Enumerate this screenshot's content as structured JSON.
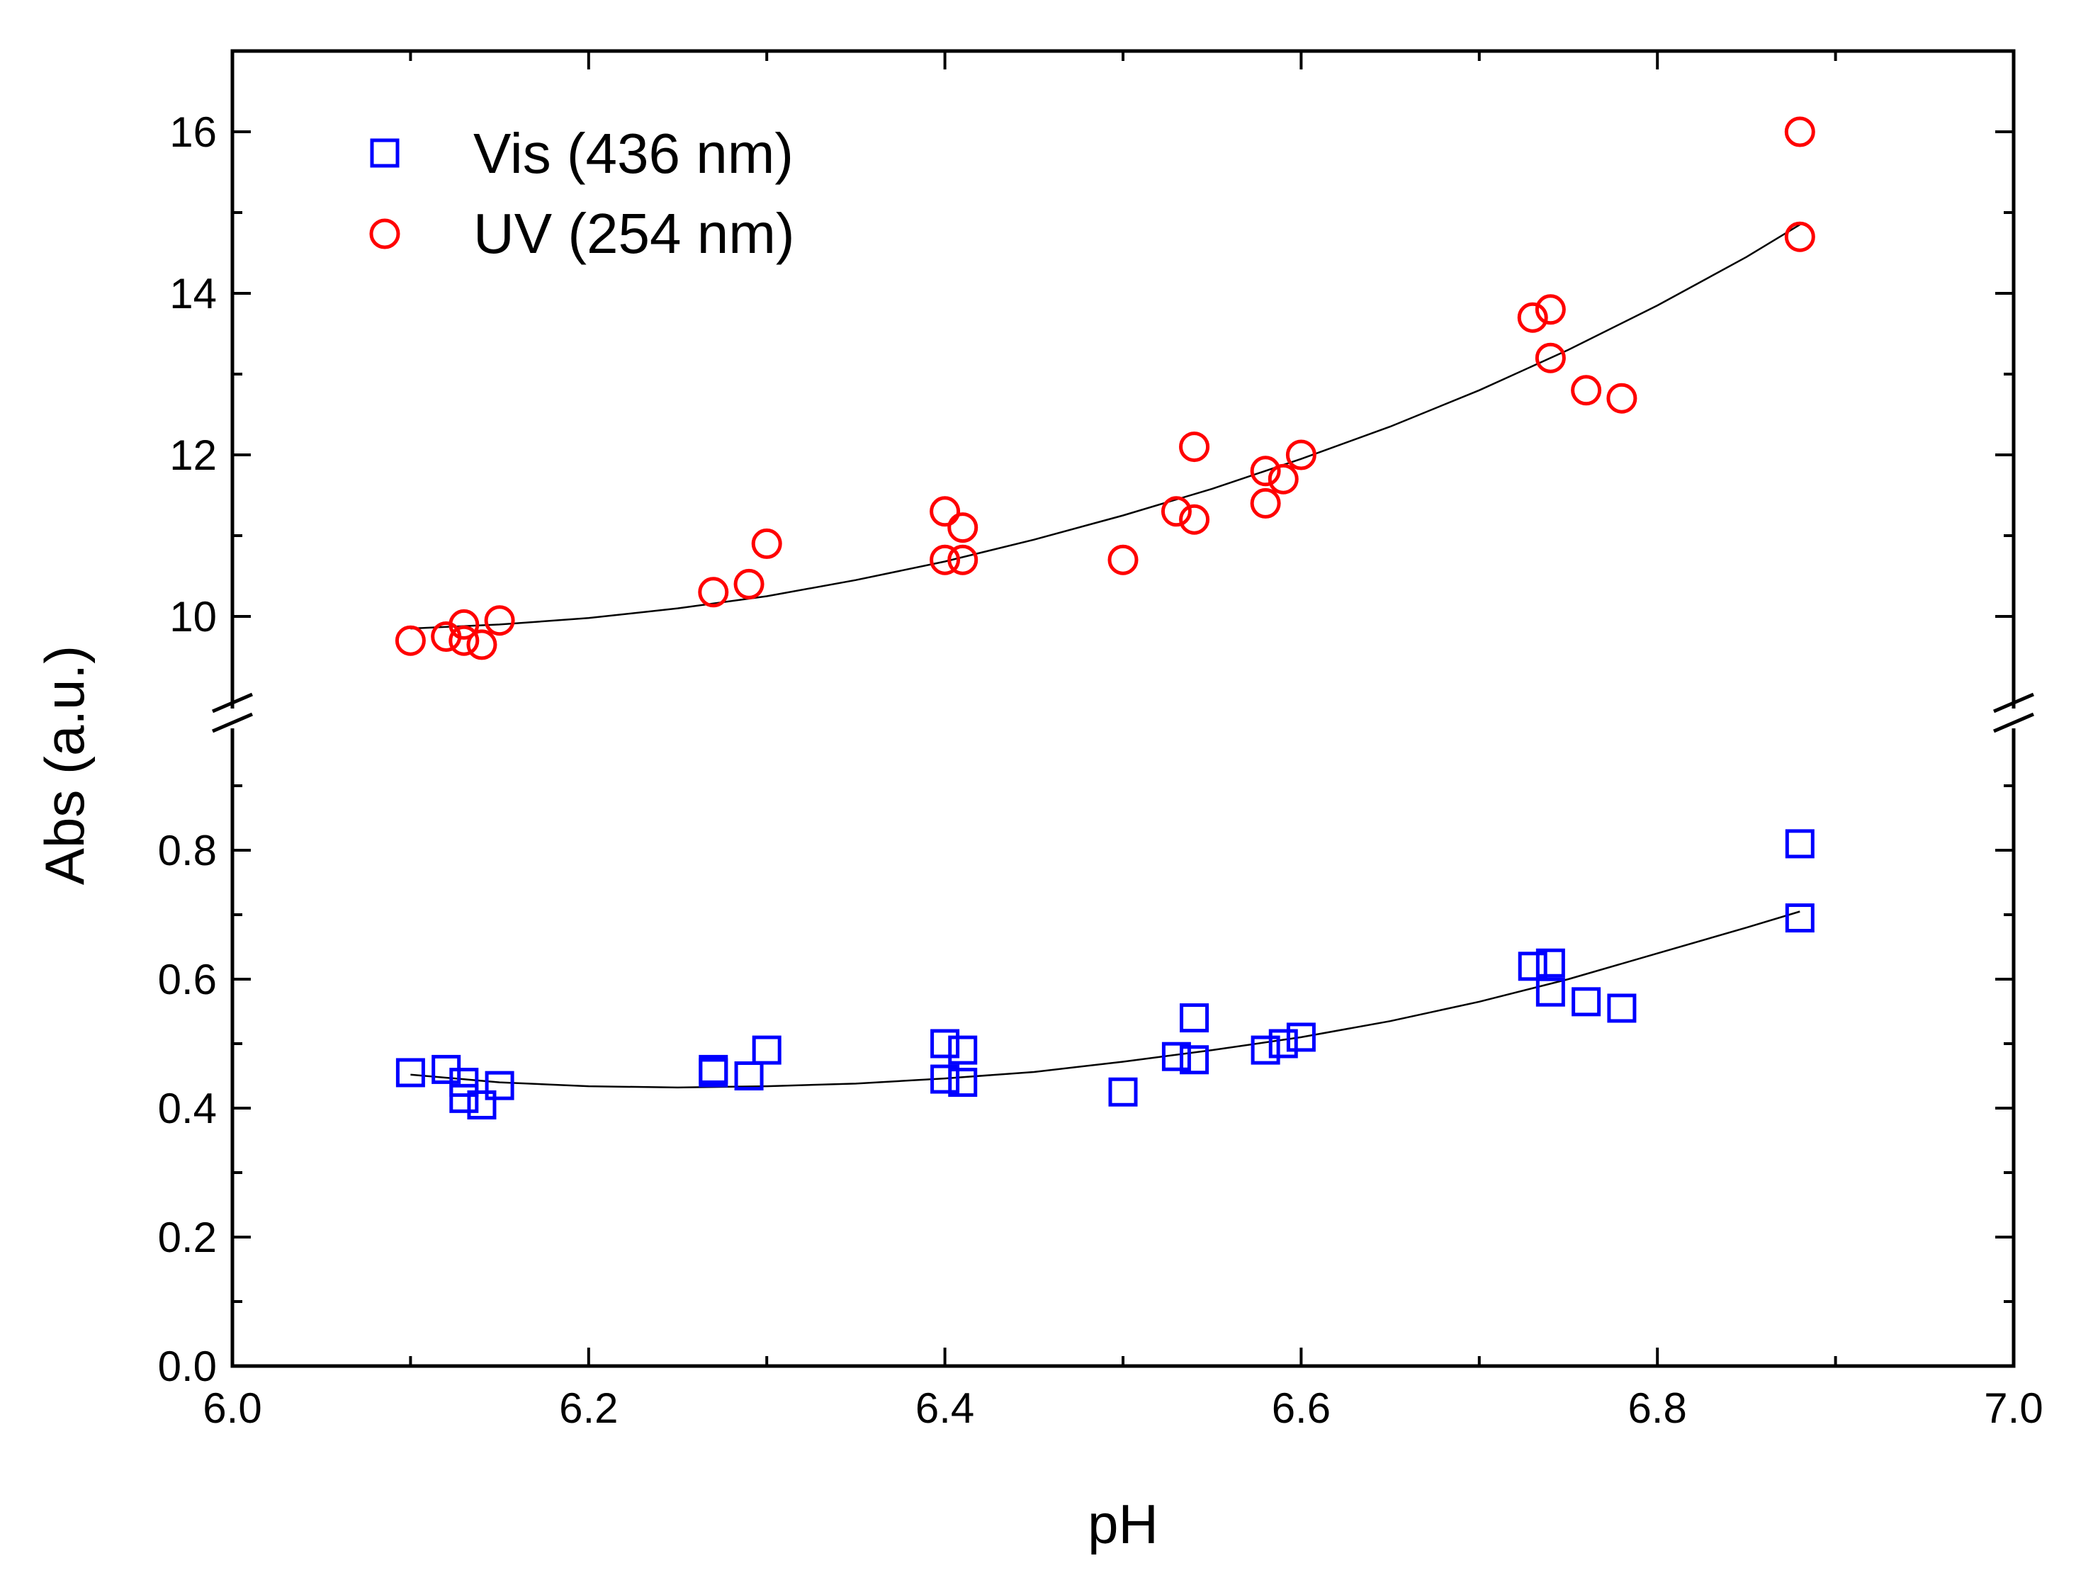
{
  "chart_data": {
    "type": "scatter",
    "title": "",
    "xlabel": "pH",
    "ylabel": "Abs (a.u.)",
    "xlim": [
      6.0,
      7.0
    ],
    "x_ticks": [
      6.0,
      6.2,
      6.4,
      6.6,
      6.8,
      7.0
    ],
    "x_tick_labels": [
      "6.0",
      "6.2",
      "6.4",
      "6.6",
      "6.8",
      "7.0"
    ],
    "broken_y_axis": true,
    "y_lower": {
      "range": [
        0.0,
        1.0
      ],
      "ticks": [
        0.0,
        0.2,
        0.4,
        0.6,
        0.8
      ],
      "tick_labels": [
        "0.0",
        "0.2",
        "0.4",
        "0.6",
        "0.8"
      ]
    },
    "y_upper": {
      "range": [
        9.0,
        17.0
      ],
      "ticks": [
        10,
        12,
        14,
        16
      ],
      "tick_labels": [
        "10",
        "12",
        "14",
        "16"
      ]
    },
    "grid": false,
    "legend_position": "top-left",
    "series": [
      {
        "name": "Vis (436 nm)",
        "marker": "square",
        "color": "#0000ff",
        "axis": "lower",
        "points": [
          [
            6.1,
            0.455
          ],
          [
            6.12,
            0.46
          ],
          [
            6.13,
            0.44
          ],
          [
            6.13,
            0.415
          ],
          [
            6.14,
            0.405
          ],
          [
            6.15,
            0.435
          ],
          [
            6.27,
            0.46
          ],
          [
            6.27,
            0.455
          ],
          [
            6.29,
            0.45
          ],
          [
            6.3,
            0.49
          ],
          [
            6.4,
            0.5
          ],
          [
            6.4,
            0.445
          ],
          [
            6.41,
            0.49
          ],
          [
            6.41,
            0.44
          ],
          [
            6.5,
            0.425
          ],
          [
            6.53,
            0.48
          ],
          [
            6.54,
            0.54
          ],
          [
            6.54,
            0.475
          ],
          [
            6.58,
            0.49
          ],
          [
            6.59,
            0.5
          ],
          [
            6.6,
            0.51
          ],
          [
            6.73,
            0.62
          ],
          [
            6.74,
            0.625
          ],
          [
            6.74,
            0.58
          ],
          [
            6.76,
            0.565
          ],
          [
            6.78,
            0.555
          ],
          [
            6.88,
            0.81
          ],
          [
            6.88,
            0.695
          ]
        ],
        "fit": [
          [
            6.1,
            0.452
          ],
          [
            6.15,
            0.44
          ],
          [
            6.2,
            0.434
          ],
          [
            6.25,
            0.432
          ],
          [
            6.3,
            0.434
          ],
          [
            6.35,
            0.438
          ],
          [
            6.4,
            0.446
          ],
          [
            6.45,
            0.456
          ],
          [
            6.5,
            0.472
          ],
          [
            6.55,
            0.49
          ],
          [
            6.6,
            0.51
          ],
          [
            6.65,
            0.535
          ],
          [
            6.7,
            0.565
          ],
          [
            6.75,
            0.6
          ],
          [
            6.8,
            0.64
          ],
          [
            6.85,
            0.68
          ],
          [
            6.88,
            0.705
          ]
        ]
      },
      {
        "name": "UV (254 nm)",
        "marker": "circle",
        "color": "#ff0000",
        "axis": "upper",
        "points": [
          [
            6.1,
            9.7
          ],
          [
            6.12,
            9.75
          ],
          [
            6.13,
            9.9
          ],
          [
            6.13,
            9.7
          ],
          [
            6.14,
            9.65
          ],
          [
            6.15,
            9.95
          ],
          [
            6.27,
            10.3
          ],
          [
            6.29,
            10.4
          ],
          [
            6.3,
            10.9
          ],
          [
            6.4,
            11.3
          ],
          [
            6.4,
            10.7
          ],
          [
            6.41,
            11.1
          ],
          [
            6.41,
            10.7
          ],
          [
            6.5,
            10.7
          ],
          [
            6.53,
            11.3
          ],
          [
            6.54,
            12.1
          ],
          [
            6.54,
            11.2
          ],
          [
            6.58,
            11.8
          ],
          [
            6.58,
            11.4
          ],
          [
            6.59,
            11.7
          ],
          [
            6.6,
            12.0
          ],
          [
            6.73,
            13.7
          ],
          [
            6.74,
            13.8
          ],
          [
            6.74,
            13.2
          ],
          [
            6.76,
            12.8
          ],
          [
            6.78,
            12.7
          ],
          [
            6.88,
            16.0
          ],
          [
            6.88,
            14.7
          ]
        ],
        "fit": [
          [
            6.1,
            9.85
          ],
          [
            6.15,
            9.9
          ],
          [
            6.2,
            9.98
          ],
          [
            6.25,
            10.1
          ],
          [
            6.3,
            10.25
          ],
          [
            6.35,
            10.45
          ],
          [
            6.4,
            10.68
          ],
          [
            6.45,
            10.95
          ],
          [
            6.5,
            11.25
          ],
          [
            6.55,
            11.58
          ],
          [
            6.6,
            11.95
          ],
          [
            6.65,
            12.35
          ],
          [
            6.7,
            12.8
          ],
          [
            6.75,
            13.3
          ],
          [
            6.8,
            13.85
          ],
          [
            6.85,
            14.45
          ],
          [
            6.88,
            14.85
          ]
        ]
      }
    ]
  }
}
